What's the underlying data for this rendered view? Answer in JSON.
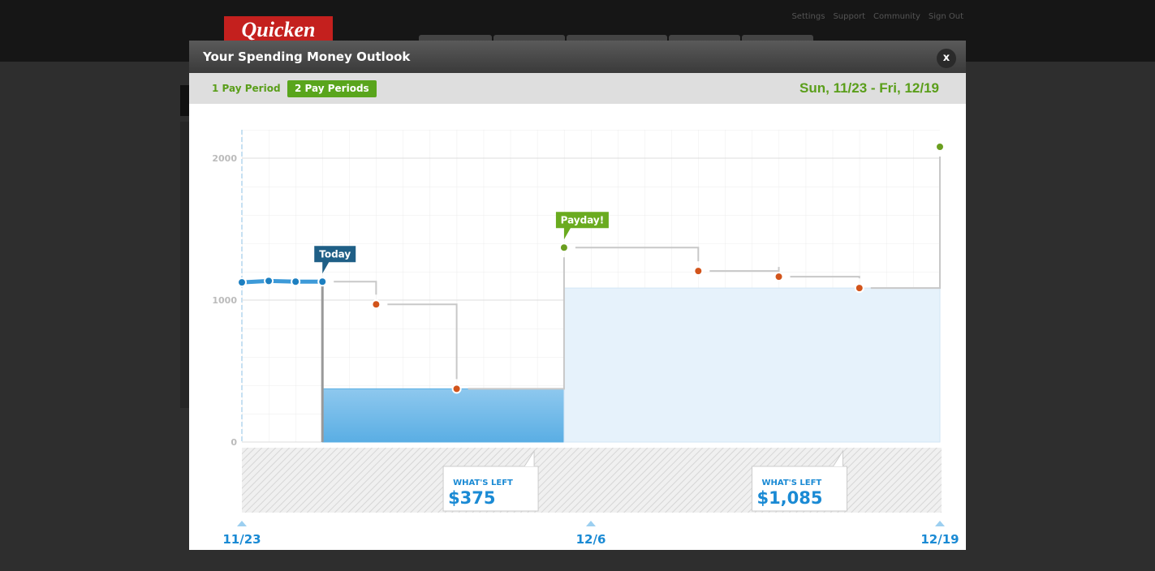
{
  "header": {
    "logo": "Quicken",
    "links": [
      "Settings",
      "Support",
      "Community",
      "Sign Out"
    ]
  },
  "modal": {
    "title": "Your Spending Money Outlook",
    "close": "x",
    "toolbar": {
      "options": [
        "1 Pay Period",
        "2 Pay Periods"
      ],
      "selected": "2 Pay Periods",
      "range": "Sun, 11/23 - Fri, 12/19"
    }
  },
  "chart_data": {
    "type": "line",
    "x": [
      "11/23",
      "11/24",
      "11/25",
      "11/26",
      "11/28",
      "12/1",
      "12/5",
      "12/10",
      "12/13",
      "12/16",
      "12/19"
    ],
    "values": [
      1125,
      1135,
      1130,
      1130,
      970,
      375,
      1370,
      1205,
      1165,
      1085,
      2080
    ],
    "point_colors": [
      "#1d7fc0",
      "#1d7fc0",
      "#1d7fc0",
      "#1d7fc0",
      "#d2541b",
      "#d2541b",
      "#6a9e1f",
      "#d2541b",
      "#d2541b",
      "#d2541b",
      "#6a9e1f"
    ],
    "xlim": [
      "11/23",
      "12/19"
    ],
    "xticks": [
      "11/23",
      "12/6",
      "12/19"
    ],
    "ylim": [
      0,
      2200
    ],
    "yticks": [
      0,
      1000,
      2000
    ],
    "grid": true,
    "annotations": [
      {
        "text": "Today",
        "x": "11/26",
        "color": "#1f5f86"
      },
      {
        "text": "Payday!",
        "x": "12/5",
        "color": "#6aab1f"
      }
    ],
    "periods": [
      {
        "start": "11/26",
        "end": "12/5",
        "value": 375,
        "title": "WHAT'S LEFT",
        "label": "$375"
      },
      {
        "start": "12/5",
        "end": "12/19",
        "value": 1085,
        "title": "WHAT'S LEFT",
        "label": "$1,085"
      }
    ]
  }
}
